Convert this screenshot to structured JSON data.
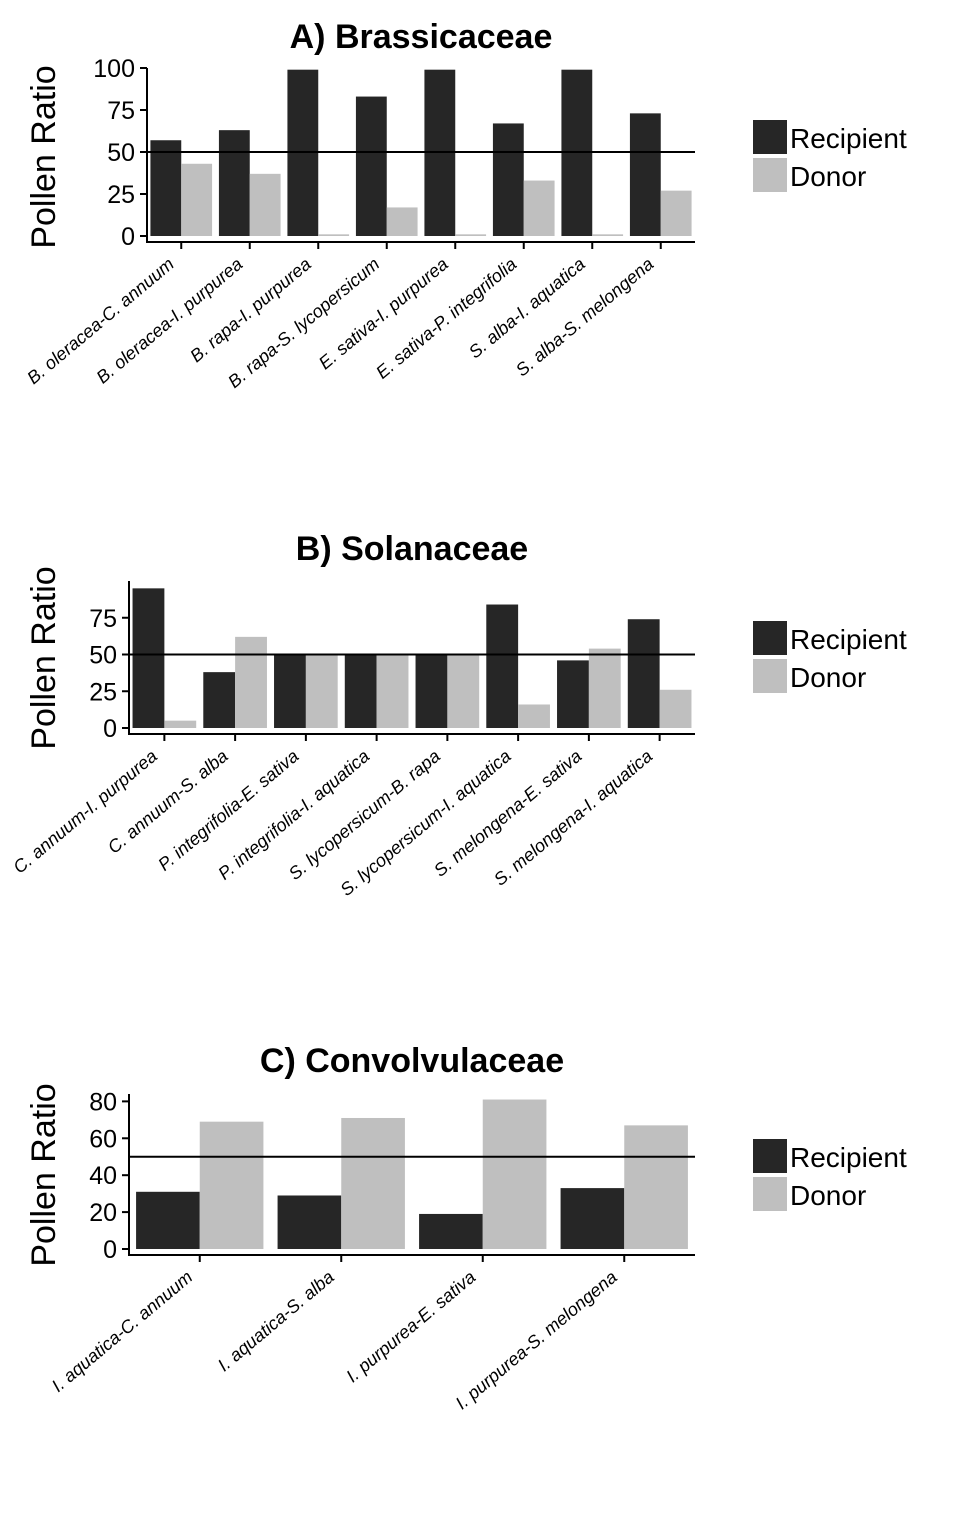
{
  "colors": {
    "recipient": "#262626",
    "donor": "#bfbfbf",
    "axis": "#000000",
    "refline": "#000000"
  },
  "chart_data": [
    {
      "type": "bar",
      "title": "A) Brassicaceae",
      "ylabel": "Pollen Ratio",
      "xlabel": "",
      "ylim": [
        0,
        100
      ],
      "yticks": [
        0,
        25,
        50,
        75,
        100
      ],
      "reference_line": 50,
      "legend": "right",
      "grid": false,
      "categories": [
        "B. oleracea-C. annuum",
        "B. oleracea-I. purpurea",
        "B. rapa-I. purpurea",
        "B. rapa-S. lycopersicum",
        "E. sativa-I. purpurea",
        "E. sativa-P. integrifolia",
        "S. alba-I. aquatica",
        "S. alba-S. melongena"
      ],
      "series": [
        {
          "name": "Recipient",
          "values": [
            57,
            63,
            99,
            83,
            99,
            67,
            99,
            73
          ]
        },
        {
          "name": "Donor",
          "values": [
            43,
            37,
            1,
            17,
            1,
            33,
            1,
            27
          ]
        }
      ]
    },
    {
      "type": "bar",
      "title": "B) Solanaceae",
      "ylabel": "Pollen Ratio",
      "xlabel": "",
      "ylim": [
        0,
        100
      ],
      "yticks": [
        0,
        25,
        50,
        75
      ],
      "reference_line": 50,
      "legend": "right",
      "grid": false,
      "categories": [
        "C. annuum-I. purpurea",
        "C. annuum-S. alba",
        "P. integrifolia-E. sativa",
        "P. integrifolia-I. aquatica",
        "S. lycopersicum-B. rapa",
        "S. lycopersicum-I. aquatica",
        "S. melongena-E. sativa",
        "S. melongena-I. aquatica"
      ],
      "series": [
        {
          "name": "Recipient",
          "values": [
            95,
            38,
            50,
            50,
            50,
            84,
            46,
            74
          ]
        },
        {
          "name": "Donor",
          "values": [
            5,
            62,
            50,
            50,
            50,
            16,
            54,
            26
          ]
        }
      ]
    },
    {
      "type": "bar",
      "title": "C) Convolvulaceae",
      "ylabel": "Pollen Ratio",
      "xlabel": "",
      "ylim": [
        0,
        84
      ],
      "yticks": [
        0,
        20,
        40,
        60,
        80
      ],
      "reference_line": 50,
      "legend": "right",
      "grid": false,
      "categories": [
        "I. aquatica-C. annuum",
        "I. aquatica-S. alba",
        "I. purpurea-E. sativa",
        "I. purpurea-S. melongena"
      ],
      "series": [
        {
          "name": "Recipient",
          "values": [
            31,
            29,
            19,
            33
          ]
        },
        {
          "name": "Donor",
          "values": [
            69,
            71,
            81,
            67
          ]
        }
      ]
    }
  ]
}
